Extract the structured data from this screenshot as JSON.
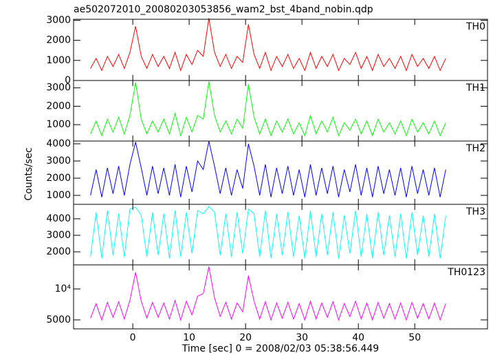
{
  "chart_data": {
    "type": "line",
    "title": "ae502072010_20080203053856_wam2_bst_4band_nobin.qdp",
    "xlabel": "Time [sec] 0 = 2008/02/03 05:38:56.449",
    "ylabel": "Counts/sec",
    "xlim": [
      -10.5,
      62.9
    ],
    "xticks": [
      0,
      10,
      20,
      30,
      40,
      50
    ],
    "x": [
      -7.5,
      -6.5,
      -5.5,
      -4.5,
      -3.5,
      -2.5,
      -1.5,
      -0.5,
      0.5,
      1.5,
      2.5,
      3.5,
      4.5,
      5.5,
      6.5,
      7.5,
      8.5,
      9.5,
      10.5,
      11.5,
      12.5,
      13.5,
      14.5,
      15.5,
      16.5,
      17.5,
      18.5,
      19.5,
      20.5,
      21.5,
      22.5,
      23.5,
      24.5,
      25.5,
      26.5,
      27.5,
      28.5,
      29.5,
      30.5,
      31.5,
      32.5,
      33.5,
      34.5,
      35.5,
      36.5,
      37.5,
      38.5,
      39.5,
      40.5,
      41.5,
      42.5,
      43.5,
      44.5,
      45.5,
      46.5,
      47.5,
      48.5,
      49.5,
      50.5,
      51.5,
      52.5,
      53.5,
      54.5,
      55.5
    ],
    "series": [
      {
        "name": "TH0",
        "color": "#ff0000",
        "ylim": [
          0,
          3050
        ],
        "yticks": [
          0,
          1000,
          2000,
          3000
        ],
        "values": [
          600,
          1100,
          500,
          1200,
          700,
          1300,
          600,
          1400,
          2700,
          1200,
          600,
          1300,
          700,
          1200,
          600,
          1400,
          500,
          1300,
          800,
          1500,
          1200,
          3100,
          1400,
          700,
          1300,
          600,
          1200,
          900,
          2800,
          1300,
          600,
          1400,
          500,
          1200,
          700,
          1300,
          600,
          1100,
          500,
          1400,
          600,
          1200,
          700,
          1300,
          500,
          1100,
          800,
          1400,
          600,
          1200,
          500,
          1300,
          700,
          1100,
          600,
          1200,
          500,
          1300,
          700,
          1100,
          600,
          1200,
          500,
          1100
        ]
      },
      {
        "name": "TH1",
        "color": "#00ff00",
        "ylim": [
          110,
          3400
        ],
        "yticks": [
          1000,
          2000,
          3000
        ],
        "values": [
          500,
          1200,
          400,
          1300,
          600,
          1400,
          500,
          1500,
          3300,
          1300,
          500,
          1200,
          600,
          1300,
          500,
          1600,
          400,
          1400,
          600,
          1500,
          1300,
          3350,
          1500,
          600,
          1200,
          500,
          1300,
          800,
          3200,
          1400,
          500,
          1300,
          400,
          1200,
          600,
          1300,
          500,
          1100,
          400,
          1500,
          500,
          1200,
          600,
          1400,
          400,
          1100,
          700,
          1300,
          500,
          1200,
          400,
          1300,
          600,
          1100,
          500,
          1200,
          400,
          1300,
          600,
          1100,
          500,
          1200,
          400,
          1100
        ]
      },
      {
        "name": "TH2",
        "color": "#0000ff",
        "ylim": [
          480,
          4160
        ],
        "yticks": [
          1000,
          2000,
          3000,
          4000
        ],
        "values": [
          1000,
          2500,
          900,
          2600,
          1100,
          2700,
          1000,
          2800,
          4100,
          2600,
          1000,
          2700,
          1100,
          2600,
          1000,
          2800,
          900,
          2700,
          1200,
          3000,
          2500,
          4150,
          2700,
          1100,
          2600,
          1000,
          2500,
          1400,
          4000,
          2700,
          1000,
          2800,
          900,
          2600,
          1100,
          2700,
          1000,
          2500,
          900,
          2800,
          1000,
          2600,
          1100,
          2700,
          900,
          2500,
          1200,
          2800,
          1000,
          2600,
          900,
          2700,
          1100,
          2500,
          1000,
          2600,
          900,
          2700,
          1100,
          2500,
          1000,
          2600,
          900,
          2500
        ]
      },
      {
        "name": "TH3",
        "color": "#00ffff",
        "ylim": [
          1210,
          4875
        ],
        "yticks": [
          2000,
          3000,
          4000
        ],
        "values": [
          1700,
          4400,
          1600,
          4500,
          1800,
          4300,
          1700,
          4600,
          4700,
          4200,
          1700,
          4400,
          1800,
          4300,
          1600,
          4500,
          1700,
          4400,
          1900,
          4500,
          4300,
          4750,
          4400,
          1800,
          4300,
          1700,
          4400,
          1900,
          4600,
          4300,
          1700,
          4500,
          1600,
          4300,
          1800,
          4400,
          1700,
          4200,
          1600,
          4500,
          1700,
          4300,
          1800,
          4400,
          1600,
          4200,
          1900,
          4500,
          1700,
          4300,
          1600,
          4400,
          1800,
          4200,
          1700,
          4300,
          1600,
          4400,
          1800,
          4200,
          1700,
          4300,
          1600,
          4200
        ]
      },
      {
        "name": "TH0123",
        "color": "#ff00ff",
        "ylim": [
          4090,
          17140
        ],
        "log": true,
        "yticks": [
          5000,
          {
            "value": 10000,
            "label": "10⁴"
          }
        ],
        "values": [
          5200,
          7200,
          5000,
          7400,
          5300,
          7500,
          5100,
          7800,
          14500,
          7600,
          5200,
          7400,
          5300,
          7300,
          5100,
          7700,
          5000,
          7600,
          5600,
          8500,
          9000,
          16500,
          8200,
          5400,
          7400,
          5100,
          7300,
          6000,
          13500,
          7600,
          5100,
          7500,
          5000,
          7300,
          5200,
          7400,
          5100,
          7200,
          5000,
          7600,
          5100,
          7300,
          5300,
          7500,
          5000,
          7200,
          5400,
          7600,
          5100,
          7300,
          5000,
          7400,
          5200,
          7200,
          5100,
          7300,
          5000,
          7400,
          5200,
          7200,
          5100,
          7300,
          5000,
          7200
        ]
      }
    ]
  }
}
